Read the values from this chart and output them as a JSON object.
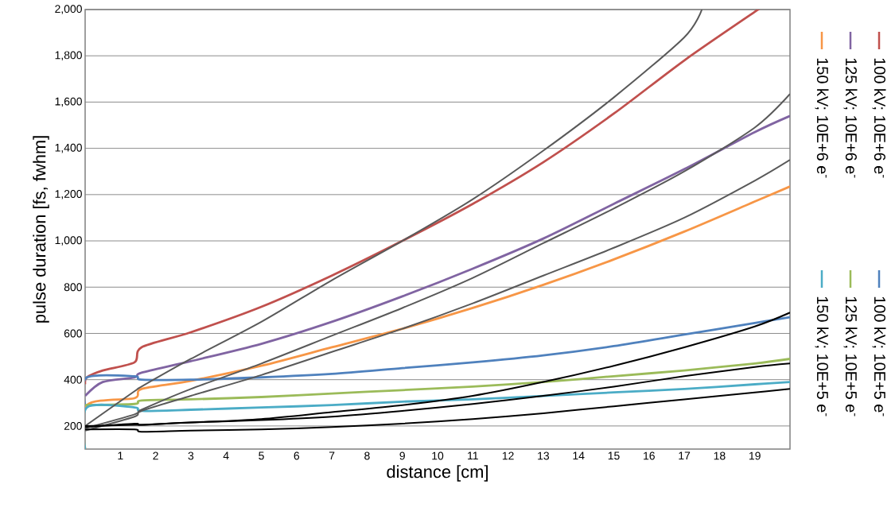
{
  "chart_data": {
    "type": "line",
    "xlabel": "distance [cm]",
    "ylabel": "pulse duration [fs, fwhm]",
    "xlim": [
      0,
      20
    ],
    "ylim": [
      100,
      2000
    ],
    "xticks": [
      1,
      2,
      3,
      4,
      5,
      6,
      7,
      8,
      9,
      10,
      11,
      12,
      13,
      14,
      15,
      16,
      17,
      18,
      19
    ],
    "yticks": [
      200,
      400,
      600,
      800,
      {
        "value": 1000,
        "label": "1,000"
      },
      {
        "value": 1200,
        "label": "1,200"
      },
      {
        "value": 1400,
        "label": "1,400"
      },
      {
        "value": 1600,
        "label": "1,600"
      },
      {
        "value": 1800,
        "label": "1,800"
      },
      {
        "value": 2000,
        "label": "2,000"
      }
    ],
    "grid": "y",
    "legend": "right",
    "line_style": "solid",
    "series": [
      {
        "name": "100 kV; 10E+6 e$^{-}$",
        "color": "#c0504d",
        "x": [
          0,
          0.05,
          0.5,
          1.4,
          1.6,
          3,
          5,
          7,
          9,
          11,
          13,
          15,
          17,
          19,
          19.1
        ],
        "values": [
          380,
          410,
          440,
          475,
          540,
          605,
          715,
          850,
          1000,
          1160,
          1340,
          1550,
          1780,
          1990,
          2000
        ]
      },
      {
        "name": "125 kV; 10E+6 e$^{-}$",
        "color": "#8064a2",
        "x": [
          0,
          0.5,
          1.4,
          1.6,
          3,
          5,
          7,
          9,
          11,
          13,
          15,
          17,
          19,
          20
        ],
        "values": [
          330,
          390,
          410,
          430,
          480,
          555,
          650,
          760,
          880,
          1010,
          1160,
          1310,
          1470,
          1540
        ]
      },
      {
        "name": "150 kV; 10E+6 e$^{-}$",
        "color": "#f79646",
        "x": [
          0,
          0.05,
          1.4,
          1.6,
          3,
          5,
          7,
          9,
          11,
          13,
          15,
          17,
          19,
          20
        ],
        "values": [
          100,
          290,
          320,
          360,
          395,
          460,
          540,
          620,
          710,
          810,
          920,
          1040,
          1170,
          1235
        ]
      },
      {
        "name": "100 kV; 10E+5 e$^{-}$",
        "color": "#4f81bd",
        "x": [
          0,
          0.05,
          1.4,
          1.6,
          3,
          5,
          7,
          9,
          11,
          13,
          15,
          17,
          19,
          20
        ],
        "values": [
          290,
          410,
          415,
          400,
          400,
          410,
          425,
          450,
          475,
          505,
          545,
          595,
          645,
          670
        ]
      },
      {
        "name": "125 kV; 10E+5 e$^{-}$",
        "color": "#9bbb59",
        "x": [
          0,
          1.4,
          1.6,
          3,
          5,
          7,
          9,
          11,
          13,
          15,
          17,
          19,
          20
        ],
        "values": [
          290,
          295,
          310,
          315,
          325,
          340,
          355,
          370,
          390,
          415,
          440,
          470,
          490
        ]
      },
      {
        "name": "150 kV; 10E+5 e$^{-}$",
        "color": "#4bacc6",
        "x": [
          0,
          0.05,
          1.4,
          1.6,
          3,
          5,
          7,
          9,
          11,
          13,
          15,
          17,
          19,
          20
        ],
        "values": [
          100,
          280,
          280,
          265,
          270,
          280,
          290,
          305,
          315,
          330,
          345,
          360,
          380,
          390
        ]
      },
      {
        "color": "#595959",
        "x": [
          0,
          1.4,
          1.6,
          3,
          5,
          7,
          9,
          11,
          13,
          15,
          17,
          17.5
        ],
        "values": [
          200,
          350,
          370,
          490,
          650,
          830,
          1000,
          1180,
          1390,
          1620,
          1880,
          2000
        ]
      },
      {
        "color": "#595959",
        "x": [
          0,
          1.4,
          1.6,
          3,
          5,
          7,
          9,
          11,
          13,
          15,
          17,
          19,
          20
        ],
        "values": [
          190,
          250,
          270,
          360,
          470,
          590,
          710,
          840,
          990,
          1140,
          1300,
          1490,
          1635
        ]
      },
      {
        "color": "#595959",
        "x": [
          0,
          1.4,
          1.6,
          3,
          5,
          7,
          9,
          11,
          13,
          15,
          17,
          19,
          20
        ],
        "values": [
          180,
          240,
          265,
          330,
          420,
          520,
          620,
          730,
          850,
          970,
          1100,
          1260,
          1350
        ]
      },
      {
        "color": "#000000",
        "x": [
          0,
          1.4,
          1.6,
          3,
          5,
          7,
          9,
          11,
          13,
          15,
          17,
          19,
          20
        ],
        "values": [
          200,
          205,
          205,
          215,
          230,
          260,
          290,
          330,
          390,
          460,
          540,
          630,
          690
        ]
      },
      {
        "color": "#000000",
        "x": [
          0,
          1.4,
          1.6,
          3,
          5,
          7,
          9,
          11,
          13,
          15,
          17,
          19,
          20
        ],
        "values": [
          195,
          210,
          205,
          215,
          225,
          240,
          265,
          295,
          330,
          370,
          415,
          455,
          470
        ]
      },
      {
        "color": "#000000",
        "x": [
          0,
          1.4,
          1.6,
          3,
          5,
          7,
          9,
          11,
          13,
          15,
          17,
          19,
          20
        ],
        "values": [
          185,
          185,
          175,
          180,
          185,
          195,
          210,
          230,
          255,
          285,
          315,
          345,
          360
        ]
      }
    ]
  }
}
